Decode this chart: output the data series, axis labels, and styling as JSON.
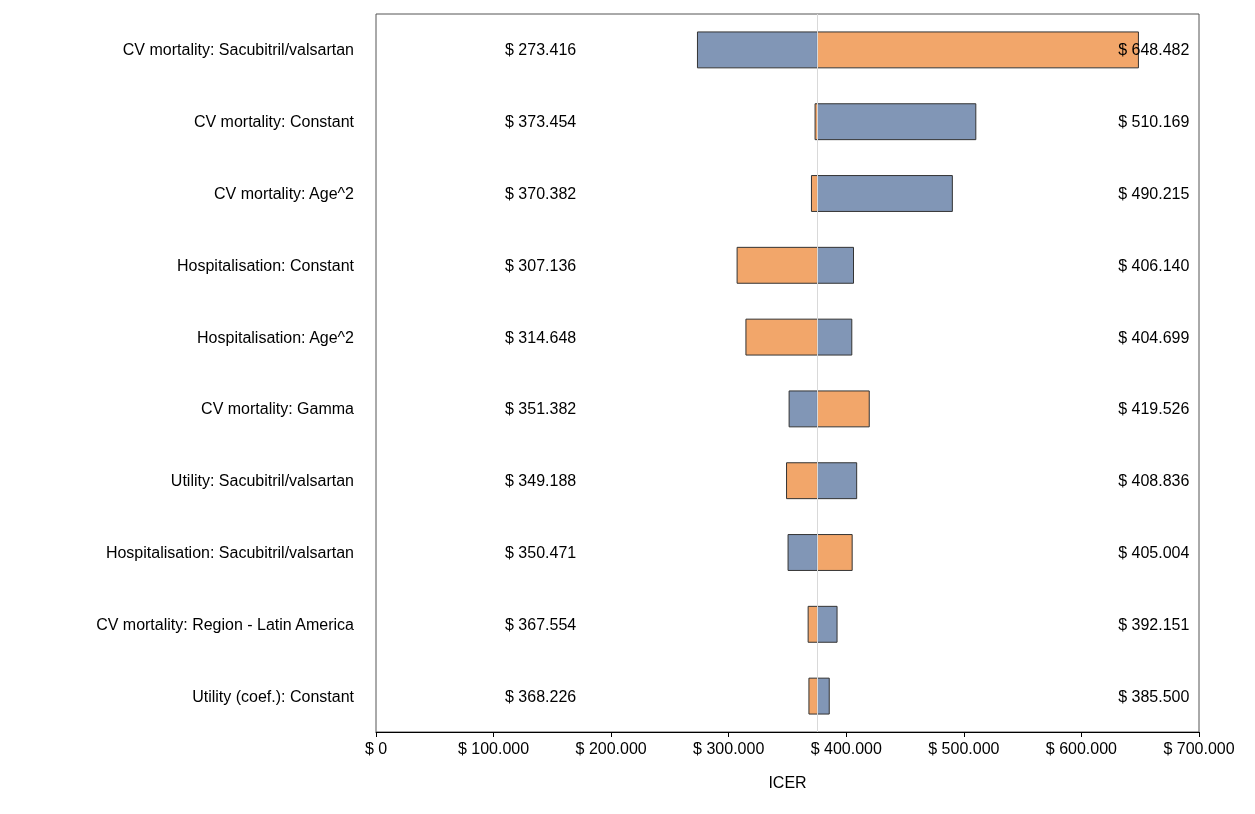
{
  "chart_data": {
    "type": "bar",
    "orientation": "horizontal",
    "xlabel": "ICER",
    "categories": [
      "CV mortality: Sacubitril/valsartan",
      "CV mortality: Constant",
      "CV mortality: Age^2",
      "Hospitalisation: Constant",
      "Hospitalisation: Age^2",
      "CV mortality: Gamma",
      "Utility: Sacubitril/valsartan",
      "Hospitalisation: Sacubitril/valsartan",
      "CV mortality: Region - Latin America",
      "Utility (coef.): Constant"
    ],
    "series": [
      {
        "color": "#8196b6",
        "base": [
          273416,
          375500,
          375500,
          375500,
          375500,
          351382,
          375500,
          350471,
          375500,
          375500
        ],
        "values": [
          102084,
          134669,
          114715,
          30640,
          29199,
          24118,
          33336,
          25029,
          16651,
          10000
        ]
      },
      {
        "color": "#f2a66a",
        "base": [
          375500,
          373454,
          370382,
          307136,
          314648,
          375500,
          349188,
          375500,
          367554,
          368226
        ],
        "values": [
          272982,
          2046,
          5118,
          68364,
          60852,
          44026,
          26312,
          29504,
          7946,
          7274
        ]
      }
    ],
    "annotations": [
      "$ 273.416",
      "$ 648.482",
      "$ 373.454",
      "$ 510.169",
      "$ 370.382",
      "$ 490.215",
      "$ 307.136",
      "$ 406.140",
      "$ 314.648",
      "$ 404.699",
      "$ 351.382",
      "$ 419.526",
      "$ 349.188",
      "$ 408.836",
      "$ 350.471",
      "$ 405.004",
      "$ 367.554",
      "$ 392.151",
      "$ 368.226",
      "$ 385.500"
    ],
    "xlim": [
      0,
      700000
    ],
    "xticks": [
      {
        "value": 0,
        "label": "$ 0"
      },
      {
        "value": 100000,
        "label": "$ 100.000"
      },
      {
        "value": 200000,
        "label": "$ 200.000"
      },
      {
        "value": 300000,
        "label": "$ 300.000"
      },
      {
        "value": 400000,
        "label": "$ 400.000"
      },
      {
        "value": 500000,
        "label": "$ 500.000"
      },
      {
        "value": 600000,
        "label": "$ 600.000"
      },
      {
        "value": 700000,
        "label": "$ 700.000"
      }
    ],
    "ref_lines": [
      {
        "axis": "x",
        "value": 375500,
        "color": "#d9d9d9"
      }
    ],
    "grid": false
  }
}
